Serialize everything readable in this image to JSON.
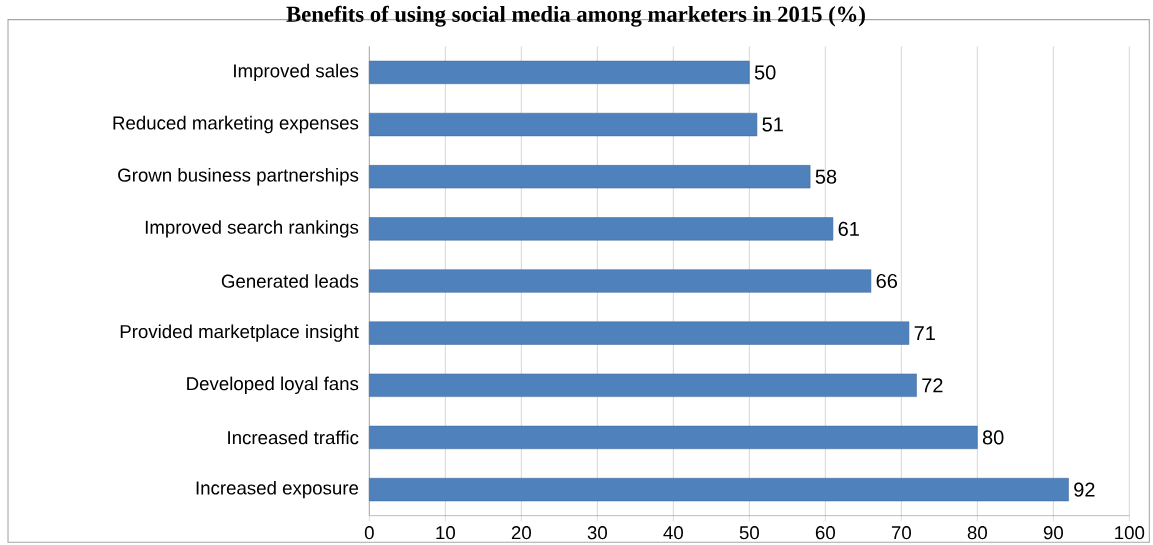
{
  "chart_data": {
    "type": "bar",
    "orientation": "horizontal",
    "title": "Benefits of using social media among marketers in 2015 (%)",
    "categories": [
      "Improved sales",
      "Reduced marketing expenses",
      "Grown business partnerships",
      "Improved search rankings",
      "Generated leads",
      "Provided marketplace insight",
      "Developed loyal fans",
      "Increased traffic",
      "Increased exposure"
    ],
    "values": [
      50,
      51,
      58,
      61,
      66,
      71,
      72,
      80,
      92
    ],
    "color": "#4f81bd",
    "xlim": [
      0,
      100
    ],
    "xticks": [
      0,
      10,
      20,
      30,
      40,
      50,
      60,
      70,
      80,
      90,
      100
    ],
    "grid": "x",
    "data_labels": true
  }
}
